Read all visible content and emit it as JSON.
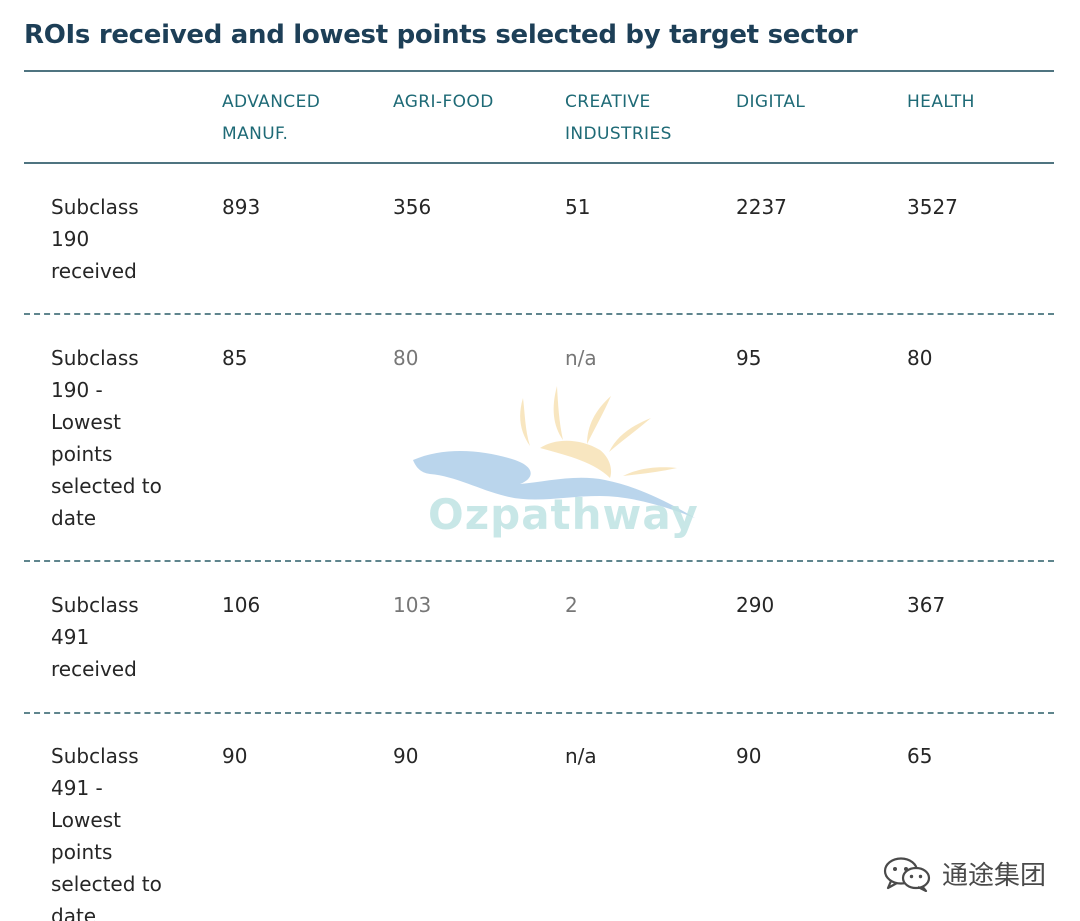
{
  "title": "ROIs received and lowest points selected by target sector",
  "columns": [
    {
      "line1": "ADVANCED",
      "line2": "MANUF."
    },
    {
      "line1": "AGRI-FOOD",
      "line2": ""
    },
    {
      "line1": "CREATIVE",
      "line2": "INDUSTRIES"
    },
    {
      "line1": "DIGITAL",
      "line2": ""
    },
    {
      "line1": "HEALTH",
      "line2": ""
    }
  ],
  "rows": [
    {
      "label_lines": [
        "Subclass",
        "190",
        "received"
      ],
      "values": [
        "893",
        "356",
        "51",
        "2237",
        "3527"
      ]
    },
    {
      "label_lines": [
        "Subclass",
        "190 -",
        "Lowest",
        "points",
        "selected to",
        "date"
      ],
      "values": [
        "85",
        "80",
        "n/a",
        "95",
        "80"
      ]
    },
    {
      "label_lines": [
        "Subclass",
        "491",
        "received"
      ],
      "values": [
        "106",
        "103",
        "2",
        "290",
        "367"
      ]
    },
    {
      "label_lines": [
        "Subclass",
        "491 -",
        "Lowest",
        "points",
        "selected to",
        "date"
      ],
      "values": [
        "90",
        "90",
        "n/a",
        "90",
        "65"
      ]
    }
  ],
  "watermark": {
    "text": "Ozpathway"
  },
  "brand": {
    "text": "通途集团",
    "icon": "wechat-icon"
  },
  "colors": {
    "title": "#1d3f57",
    "header": "#1e6a76",
    "rule": "#4f7480"
  }
}
